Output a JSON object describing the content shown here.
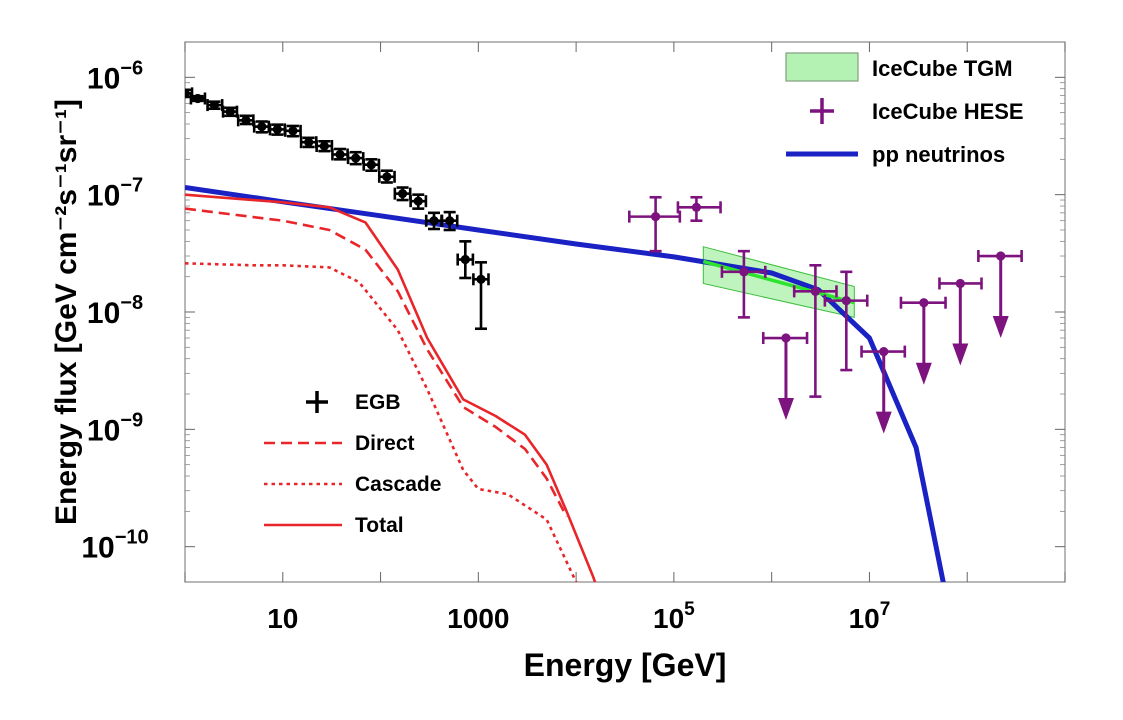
{
  "chart_data": {
    "type": "line",
    "title": "",
    "xlabel": "Energy [GeV]",
    "ylabel": "Energy flux [GeV cm⁻²s⁻¹sr⁻¹]",
    "xscale": "log",
    "yscale": "log",
    "xlim": [
      1,
      1000000000.0
    ],
    "ylim": [
      5e-11,
      2e-06
    ],
    "x_ticks": [
      {
        "value": 10,
        "label": "10"
      },
      {
        "value": 1000,
        "label": "1000"
      },
      {
        "value": 100000,
        "label": "10",
        "exp": "5"
      },
      {
        "value": 10000000,
        "label": "10",
        "exp": "7"
      }
    ],
    "y_ticks": [
      {
        "value": 1e-06,
        "label": "10",
        "exp": "−6"
      },
      {
        "value": 1e-07,
        "label": "10",
        "exp": "−7"
      },
      {
        "value": 1e-08,
        "label": "10",
        "exp": "−8"
      },
      {
        "value": 1e-09,
        "label": "10",
        "exp": "−9"
      },
      {
        "value": 1e-10,
        "label": "10",
        "exp": "−10"
      }
    ],
    "legend_upper": [
      {
        "name": "IceCube TGM",
        "marker": "band"
      },
      {
        "name": "IceCube HESE",
        "marker": "cross"
      },
      {
        "name": "pp neutrinos",
        "marker": "line"
      }
    ],
    "legend_lower": [
      {
        "name": "EGB",
        "marker": "cross"
      },
      {
        "name": "Direct",
        "marker": "dashed"
      },
      {
        "name": "Cascade",
        "marker": "dotted"
      },
      {
        "name": "Total",
        "marker": "solid"
      }
    ],
    "colors": {
      "egb": "#000000",
      "gamma": "#e8262a",
      "pp": "#1a22c4",
      "hese": "#7d137e",
      "tgm_fill": "#b4f2b4",
      "tgm_edge": "#3fbf3f",
      "tgm_line": "#2ee32e"
    },
    "series": [
      {
        "name": "pp neutrinos",
        "style": "solid",
        "x": [
          1,
          10,
          100,
          1000,
          10000,
          100000,
          1000000,
          3000000,
          10000000,
          30000000,
          60000000
        ],
        "y": [
          1.15e-07,
          8.7e-08,
          6.6e-08,
          5e-08,
          3.8e-08,
          2.95e-08,
          2.15e-08,
          1.55e-08,
          6e-09,
          7e-10,
          4e-11
        ]
      },
      {
        "name": "Total",
        "style": "solid",
        "x": [
          1,
          10,
          30,
          70,
          150,
          300,
          700,
          1500,
          3000,
          5000,
          8000,
          15000,
          30000
        ],
        "y": [
          1e-07,
          8.6e-08,
          7.8e-08,
          5.8e-08,
          2.3e-08,
          6e-09,
          1.8e-09,
          1.3e-09,
          9e-10,
          5e-10,
          2e-10,
          5.5e-11,
          1e-11
        ]
      },
      {
        "name": "Direct",
        "style": "dashed",
        "x": [
          1,
          10,
          30,
          70,
          150,
          300,
          700,
          1500,
          3000,
          5000,
          8000
        ],
        "y": [
          7.6e-08,
          6e-08,
          5e-08,
          3.4e-08,
          1.5e-08,
          4.8e-09,
          1.55e-09,
          1.05e-09,
          6.8e-10,
          3.8e-10,
          1.8e-10
        ]
      },
      {
        "name": "Cascade",
        "style": "dotted",
        "x": [
          1,
          5,
          10,
          30,
          60,
          150,
          300,
          700,
          1000,
          2000,
          5000,
          10000,
          13000
        ],
        "y": [
          2.6e-08,
          2.5e-08,
          2.5e-08,
          2.4e-08,
          1.8e-08,
          7e-09,
          2.2e-09,
          4.5e-10,
          3.1e-10,
          2.8e-10,
          1.7e-10,
          5e-11,
          1e-11
        ]
      },
      {
        "name": "EGB",
        "style": "points",
        "points": [
          {
            "x": 1.0,
            "y": 7.3e-07,
            "xlo": 0.95,
            "xhi": 1.18,
            "ylo": 6.8e-07,
            "yhi": 7.8e-07
          },
          {
            "x": 1.35,
            "y": 6.6e-07,
            "xlo": 1.15,
            "xhi": 1.6,
            "ylo": 6.3e-07,
            "yhi": 6.9e-07
          },
          {
            "x": 2.0,
            "y": 5.8e-07,
            "xlo": 1.7,
            "xhi": 2.4,
            "ylo": 5.4e-07,
            "yhi": 6.2e-07
          },
          {
            "x": 2.9,
            "y": 5.1e-07,
            "xlo": 2.45,
            "xhi": 3.4,
            "ylo": 4.7e-07,
            "yhi": 5.5e-07
          },
          {
            "x": 4.2,
            "y": 4.3e-07,
            "xlo": 3.5,
            "xhi": 5.0,
            "ylo": 4e-07,
            "yhi": 4.7e-07
          },
          {
            "x": 6.1,
            "y": 3.8e-07,
            "xlo": 5.1,
            "xhi": 7.2,
            "ylo": 3.4e-07,
            "yhi": 4.2e-07
          },
          {
            "x": 8.8,
            "y": 3.6e-07,
            "xlo": 7.4,
            "xhi": 10.5,
            "ylo": 3.25e-07,
            "yhi": 3.95e-07
          },
          {
            "x": 12.7,
            "y": 3.5e-07,
            "xlo": 10.6,
            "xhi": 15.2,
            "ylo": 3.15e-07,
            "yhi": 3.85e-07
          },
          {
            "x": 18.4,
            "y": 2.8e-07,
            "xlo": 15.4,
            "xhi": 22.0,
            "ylo": 2.55e-07,
            "yhi": 3.05e-07
          },
          {
            "x": 26.6,
            "y": 2.6e-07,
            "xlo": 22.2,
            "xhi": 31.8,
            "ylo": 2.35e-07,
            "yhi": 2.85e-07
          },
          {
            "x": 38.5,
            "y": 2.2e-07,
            "xlo": 32.2,
            "xhi": 46.0,
            "ylo": 2e-07,
            "yhi": 2.45e-07
          },
          {
            "x": 55.7,
            "y": 2.05e-07,
            "xlo": 46.5,
            "xhi": 66.5,
            "ylo": 1.82e-07,
            "yhi": 2.3e-07
          },
          {
            "x": 80.5,
            "y": 1.8e-07,
            "xlo": 67.3,
            "xhi": 96.2,
            "ylo": 1.6e-07,
            "yhi": 2e-07
          },
          {
            "x": 116,
            "y": 1.42e-07,
            "xlo": 97,
            "xhi": 139,
            "ylo": 1.27e-07,
            "yhi": 1.6e-07
          },
          {
            "x": 168,
            "y": 1.02e-07,
            "xlo": 140,
            "xhi": 201,
            "ylo": 9e-08,
            "yhi": 1.15e-07
          },
          {
            "x": 243,
            "y": 8.8e-08,
            "xlo": 203,
            "xhi": 291,
            "ylo": 7.6e-08,
            "yhi": 1e-07
          },
          {
            "x": 352,
            "y": 6e-08,
            "xlo": 293,
            "xhi": 420,
            "ylo": 5.1e-08,
            "yhi": 7e-08
          },
          {
            "x": 509,
            "y": 6e-08,
            "xlo": 425,
            "xhi": 608,
            "ylo": 5e-08,
            "yhi": 7.1e-08
          },
          {
            "x": 736,
            "y": 2.8e-08,
            "xlo": 615,
            "xhi": 880,
            "ylo": 1.95e-08,
            "yhi": 4e-08
          },
          {
            "x": 1065,
            "y": 1.9e-08,
            "xlo": 890,
            "xhi": 1270,
            "ylo": 7.2e-09,
            "yhi": 2.65e-08
          }
        ]
      },
      {
        "name": "IceCube HESE",
        "style": "points",
        "points": [
          {
            "x": 65000,
            "y": 6.5e-08,
            "xlo": 35000,
            "xhi": 115000,
            "ylo": 3.3e-08,
            "yhi": 9.5e-08
          },
          {
            "x": 170000,
            "y": 7.8e-08,
            "xlo": 110000,
            "xhi": 300000,
            "ylo": 6e-08,
            "yhi": 9.5e-08
          },
          {
            "x": 520000,
            "y": 2.2e-08,
            "xlo": 310000,
            "xhi": 860000,
            "ylo": 9e-09,
            "yhi": 3.3e-08
          },
          {
            "x": 1400000,
            "y": 6e-09,
            "xlo": 820000,
            "xhi": 2300000,
            "upper_limit": true
          },
          {
            "x": 2800000,
            "y": 1.5e-08,
            "xlo": 1700000,
            "xhi": 4600000,
            "ylo": 1.9e-09,
            "yhi": 2.5e-08
          },
          {
            "x": 5800000,
            "y": 1.25e-08,
            "xlo": 3500000,
            "xhi": 9500000,
            "ylo": 3.2e-09,
            "yhi": 2.2e-08
          },
          {
            "x": 14000000,
            "y": 4.6e-09,
            "xlo": 8300000,
            "xhi": 23000000,
            "upper_limit": true
          },
          {
            "x": 36000000,
            "y": 1.2e-08,
            "xlo": 21000000,
            "xhi": 60000000,
            "upper_limit": true
          },
          {
            "x": 85000000,
            "y": 1.75e-08,
            "xlo": 52000000,
            "xhi": 140000000,
            "upper_limit": true
          },
          {
            "x": 220000000,
            "y": 3e-08,
            "xlo": 130000000,
            "xhi": 360000000,
            "upper_limit": true
          }
        ]
      },
      {
        "name": "IceCube TGM",
        "style": "band",
        "x": [
          200000,
          7000000
        ],
        "y_best": [
          2.7e-08,
          1.2e-08
        ],
        "y_lo": [
          1.75e-08,
          9e-09
        ],
        "y_hi": [
          3.6e-08,
          1.65e-08
        ]
      }
    ]
  }
}
